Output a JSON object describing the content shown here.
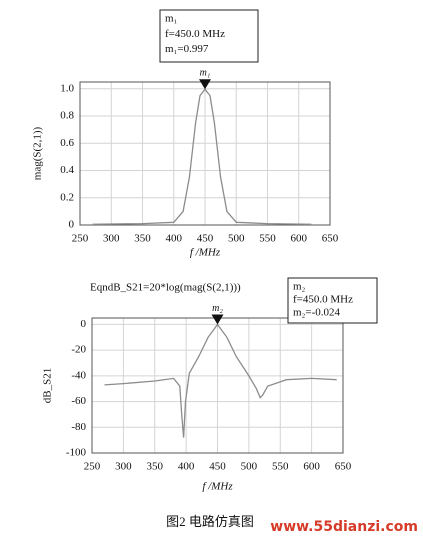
{
  "chart_data": [
    {
      "type": "line",
      "xlabel": "f /MHz",
      "ylabel": "mag(S(2,1))",
      "color": "#8c8c8c",
      "grid": true,
      "x": [
        270,
        350,
        400,
        415,
        425,
        435,
        442,
        450,
        458,
        465,
        475,
        485,
        500,
        550,
        620
      ],
      "values": [
        0.005,
        0.01,
        0.02,
        0.1,
        0.35,
        0.75,
        0.95,
        0.997,
        0.95,
        0.75,
        0.35,
        0.1,
        0.02,
        0.01,
        0.005
      ],
      "xlim": [
        250,
        650
      ],
      "xticks": [
        250,
        300,
        350,
        400,
        450,
        500,
        550,
        600,
        650
      ],
      "ylim": [
        0,
        1.05
      ],
      "yticks": [
        0,
        0.2,
        0.4,
        0.6,
        0.8,
        {
          "value": 1,
          "label": "1.0"
        }
      ],
      "marker": {
        "label": "m₁",
        "x": 450,
        "y": 0.997,
        "lines": [
          "m₁",
          "f=450.0  MHz",
          "m₁=0.997"
        ]
      }
    },
    {
      "type": "line",
      "title": "EqndB_S21=20*log(mag(S(2,1)))",
      "xlabel": "f /MHz",
      "ylabel": "dB_S21",
      "color": "#8c8c8c",
      "grid": true,
      "x": [
        270,
        300,
        350,
        380,
        390,
        393,
        396,
        399,
        405,
        420,
        435,
        450,
        465,
        480,
        500,
        512,
        518,
        522,
        530,
        560,
        600,
        640
      ],
      "values": [
        -47,
        -46,
        -44,
        -42,
        -48,
        -70,
        -88,
        -60,
        -38,
        -25,
        -10,
        -0.024,
        -10,
        -25,
        -40,
        -50,
        -57,
        -55,
        -48,
        -43,
        -42,
        -43
      ],
      "xlim": [
        250,
        650
      ],
      "xticks": [
        250,
        300,
        350,
        400,
        450,
        500,
        550,
        600,
        650
      ],
      "ylim": [
        -100,
        5
      ],
      "yticks": [
        -100,
        -80,
        -60,
        -40,
        -20,
        0
      ],
      "marker": {
        "label": "m₂",
        "x": 450,
        "y": -0.024,
        "lines": [
          "m₂",
          "f=450.0  MHz",
          "m₂=-0.024"
        ]
      }
    }
  ],
  "caption": "图2   电路仿真图",
  "watermark": "www.55dianzi.com"
}
